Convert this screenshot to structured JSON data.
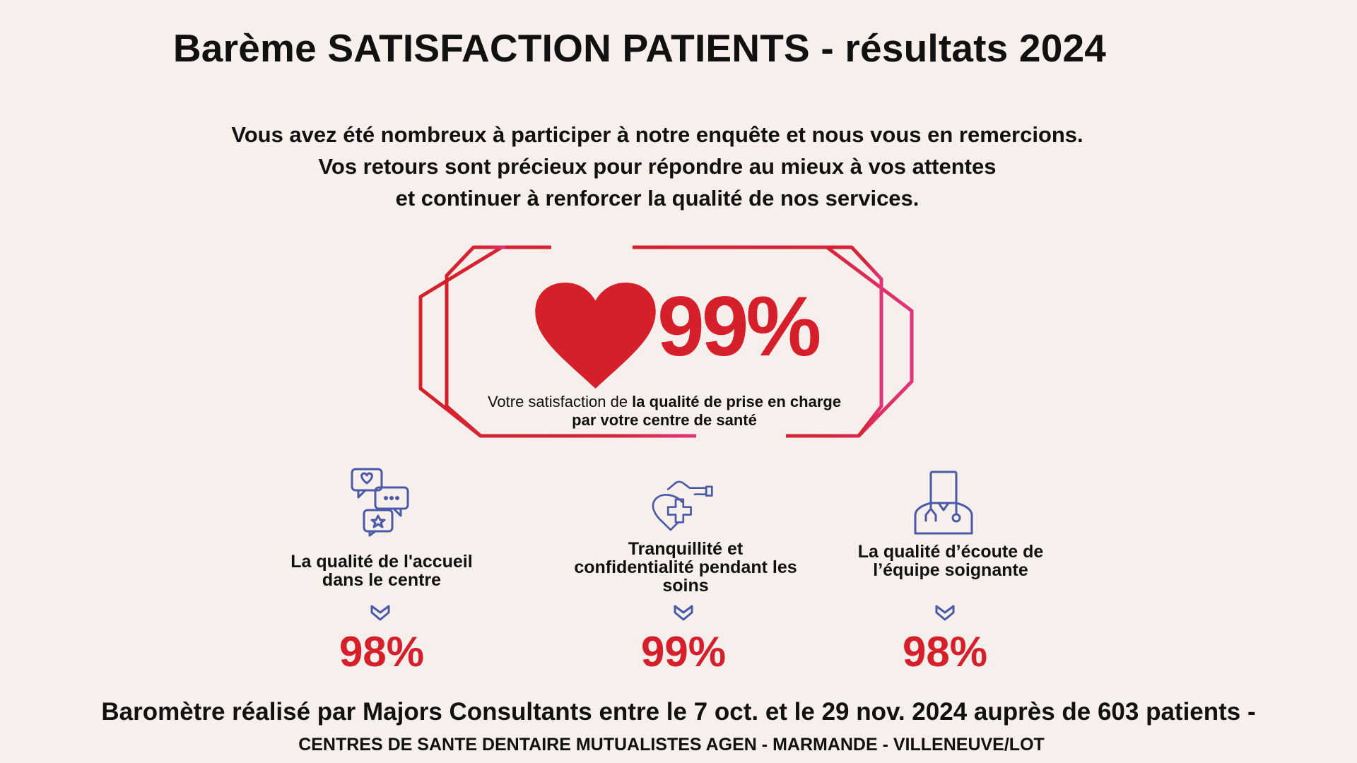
{
  "title": "Barème SATISFACTION PATIENTS - résultats 2024",
  "intro": {
    "line1": "Vous avez été nombreux à participer à notre enquête et nous vous en remercions.",
    "line2": "Vos retours sont précieux pour répondre au mieux à vos attentes",
    "line3": "et continuer à renforcer la qualité de nos services."
  },
  "main": {
    "percent": "99%",
    "caption_part1": "Votre satisfaction de ",
    "caption_part2": "la qualité de prise en charge par votre centre de santé"
  },
  "metrics": [
    {
      "icon": "chat-bubbles-icon",
      "label": "La qualité de l'accueil dans le centre",
      "value": "98%"
    },
    {
      "icon": "hand-care-icon",
      "label": "Tranquillité et confidentialité pendant les soins",
      "value": "99%"
    },
    {
      "icon": "doctor-icon",
      "label": "La qualité d’écoute de l’équipe soignante",
      "value": "98%"
    }
  ],
  "footer": {
    "main": "Baromètre réalisé par Majors Consultants entre le 7 oct. et le 29 nov. 2024 auprès de 603 patients -",
    "sub": "CENTRES DE SANTE DENTAIRE MUTUALISTES  AGEN - MARMANDE - VILLENEUVE/LOT"
  },
  "colors": {
    "background": "#f7efeb",
    "accent_red": "#d5202c",
    "frame_pink": "#e0357a",
    "icon_blue": "#4a5aa6"
  }
}
